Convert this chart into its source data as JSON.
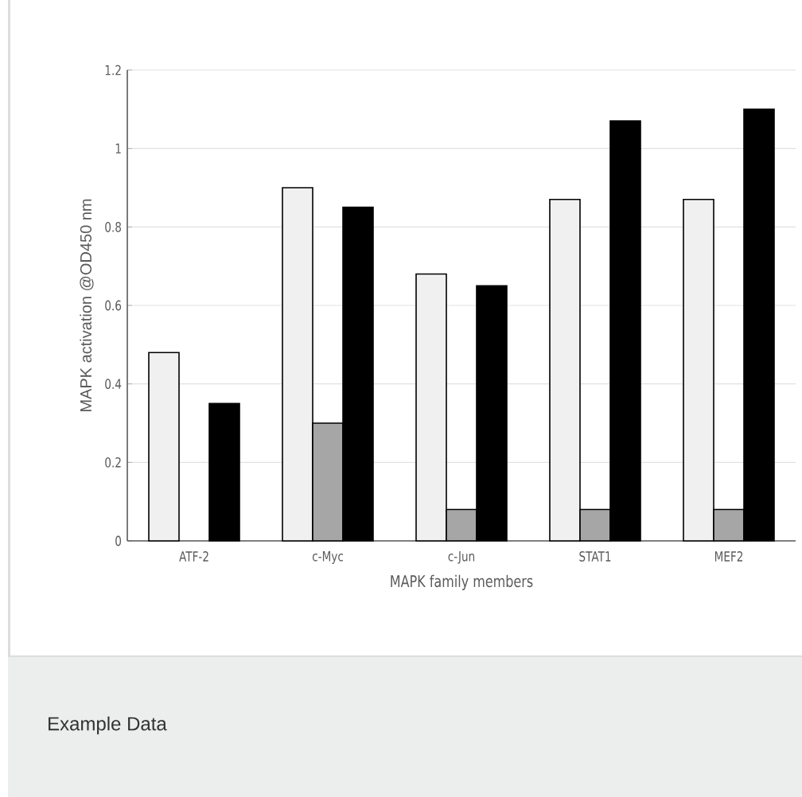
{
  "chart_data": {
    "type": "bar",
    "xlabel": "MAPK family members",
    "ylabel": "MAPK activation @OD450 nm",
    "categories": [
      "ATF-2",
      "c-Myc",
      "c-Jun",
      "STAT1",
      "MEF2"
    ],
    "series": [
      {
        "color": "#f0f0f0",
        "values": [
          0.48,
          0.9,
          0.68,
          0.87,
          0.87
        ]
      },
      {
        "color": "#a6a6a6",
        "values": [
          null,
          0.3,
          0.08,
          0.08,
          0.08
        ]
      },
      {
        "color": "#000000",
        "values": [
          0.35,
          0.85,
          0.65,
          1.07,
          1.1
        ]
      }
    ],
    "ylim": [
      0,
      1.2
    ],
    "yticks": [
      0,
      0.2,
      0.4,
      0.6,
      0.8,
      1,
      1.2
    ],
    "grid": "y",
    "annotations": [
      "Example Data"
    ]
  }
}
